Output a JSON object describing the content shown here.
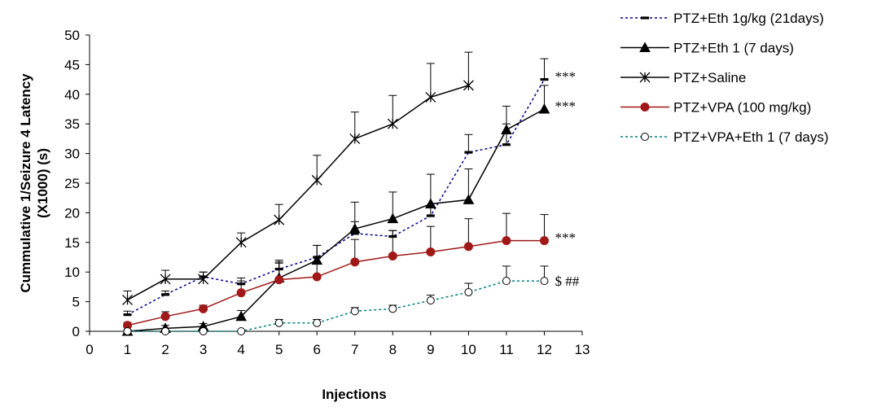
{
  "chart_data": {
    "type": "line",
    "xlabel": "Injections",
    "ylabel": "Cummulative 1/Seizure 4 Latency (X1000) (s)",
    "xlim": [
      0,
      13
    ],
    "ylim": [
      0,
      50
    ],
    "xticks": [
      0,
      1,
      2,
      3,
      4,
      5,
      6,
      7,
      8,
      9,
      10,
      11,
      12,
      13
    ],
    "yticks": [
      0,
      5,
      10,
      15,
      20,
      25,
      30,
      35,
      40,
      45,
      50
    ],
    "grid": false,
    "legend_position": "top-right",
    "series": [
      {
        "name": "PTZ+Eth 1g/kg (21days)",
        "color": "#00008b",
        "line": "dotted",
        "marker": "dash",
        "x": [
          1,
          2,
          3,
          4,
          5,
          6,
          7,
          8,
          9,
          10,
          11,
          12
        ],
        "y": [
          2.8,
          6.2,
          9.2,
          8.0,
          10.5,
          12.5,
          16.5,
          16.0,
          19.5,
          30.2,
          31.5,
          42.5
        ],
        "err": [
          0.6,
          0.6,
          0.8,
          1.0,
          1.5,
          2.0,
          2.0,
          1.0,
          1.5,
          3.0,
          3.5,
          3.5
        ]
      },
      {
        "name": "PTZ+Eth 1 (7 days)",
        "color": "#000000",
        "line": "solid",
        "marker": "triangle",
        "x": [
          1,
          2,
          3,
          4,
          5,
          6,
          7,
          8,
          9,
          10,
          11,
          12
        ],
        "y": [
          0.0,
          0.5,
          0.8,
          2.5,
          9.0,
          12.0,
          17.3,
          19.0,
          21.5,
          22.2,
          34.0,
          37.5
        ],
        "err": [
          0.3,
          0.5,
          0.5,
          1.0,
          2.5,
          2.5,
          4.5,
          4.5,
          5.0,
          5.2,
          4.0,
          4.0
        ]
      },
      {
        "name": "PTZ+Saline",
        "color": "#000000",
        "line": "solid",
        "marker": "asterisk",
        "x": [
          1,
          2,
          3,
          4,
          5,
          6,
          7,
          8,
          9,
          10
        ],
        "y": [
          5.3,
          8.8,
          8.8,
          15.0,
          18.8,
          25.5,
          32.5,
          35.0,
          39.5,
          41.5
        ],
        "err": [
          1.5,
          1.5,
          1.2,
          1.6,
          2.6,
          4.2,
          4.5,
          4.8,
          5.7,
          5.6
        ]
      },
      {
        "name": "PTZ+VPA (100 mg/kg)",
        "color": "#a01818",
        "line": "solid",
        "marker": "circle",
        "x": [
          1,
          2,
          3,
          4,
          5,
          6,
          7,
          8,
          9,
          10,
          11,
          12
        ],
        "y": [
          1.0,
          2.5,
          3.8,
          6.5,
          8.7,
          9.2,
          11.7,
          12.7,
          13.4,
          14.3,
          15.3,
          15.3
        ],
        "err": [
          0.5,
          0.8,
          0.6,
          2.0,
          3.0,
          3.3,
          3.8,
          4.3,
          4.3,
          4.7,
          4.6,
          4.4
        ]
      },
      {
        "name": "PTZ+VPA+Eth 1 (7 days)",
        "color": "#008080",
        "line": "dotted",
        "marker": "open-circle",
        "x": [
          1,
          2,
          3,
          4,
          5,
          6,
          7,
          8,
          9,
          10,
          11,
          12
        ],
        "y": [
          0.0,
          0.0,
          0.0,
          0.0,
          1.4,
          1.4,
          3.4,
          3.8,
          5.2,
          6.6,
          8.5,
          8.5
        ],
        "err": [
          0.0,
          0.0,
          0.0,
          0.0,
          0.6,
          0.6,
          0.6,
          0.6,
          0.9,
          1.5,
          2.5,
          2.5
        ]
      }
    ],
    "annotations": [
      {
        "text": "***",
        "x": 12,
        "y": 42.5
      },
      {
        "text": "***",
        "x": 12,
        "y": 37.5
      },
      {
        "text": "***",
        "x": 12,
        "y": 15.3
      },
      {
        "text": "$ ##",
        "x": 12,
        "y": 8.5
      }
    ]
  }
}
